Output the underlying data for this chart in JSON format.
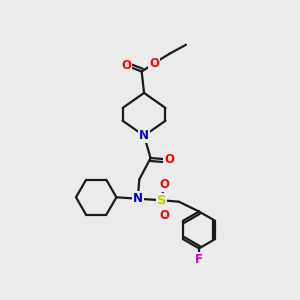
{
  "bg_color": "#ebebeb",
  "bond_color": "#1a1a1a",
  "atom_colors": {
    "O": "#ff0000",
    "N": "#0000cc",
    "S": "#cccc00",
    "F": "#cc00cc",
    "C": "#1a1a1a"
  },
  "figsize": [
    3.0,
    3.0
  ],
  "dpi": 100,
  "lw": 1.6,
  "fs": 8.5
}
